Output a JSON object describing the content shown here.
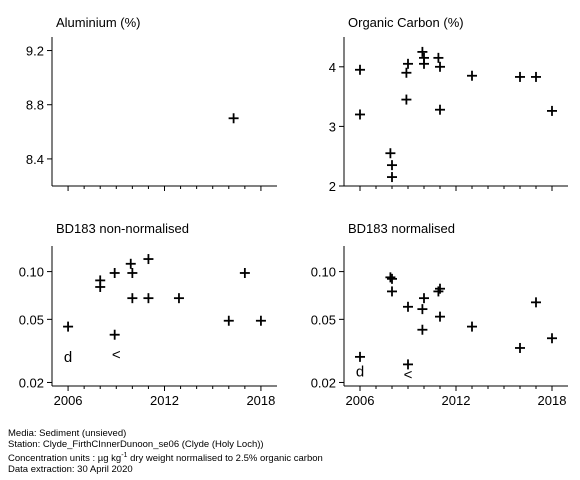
{
  "chart_data": [
    {
      "type": "scatter",
      "title": "Aluminium (%)",
      "xlim": [
        2005,
        2019
      ],
      "ylim": [
        8.2,
        9.3
      ],
      "yscale": "linear",
      "xticks": [
        2006,
        2012,
        2018
      ],
      "xtick_labels": [
        "",
        "",
        ""
      ],
      "yticks": [
        8.4,
        8.8,
        9.2
      ],
      "ytick_labels": [
        "8.4",
        "8.8",
        "9.2"
      ],
      "points": [
        {
          "x": 2016.3,
          "y": 8.7,
          "marker": "+"
        }
      ]
    },
    {
      "type": "scatter",
      "title": "Organic Carbon (%)",
      "xlim": [
        2005,
        2019
      ],
      "ylim": [
        2,
        4.5
      ],
      "yscale": "linear",
      "xticks": [
        2006,
        2012,
        2018
      ],
      "xtick_labels": [
        "",
        "",
        ""
      ],
      "yticks": [
        2,
        3,
        4
      ],
      "ytick_labels": [
        "2",
        "3",
        "4"
      ],
      "points": [
        {
          "x": 2006,
          "y": 3.95,
          "marker": "+"
        },
        {
          "x": 2006,
          "y": 3.2,
          "marker": "+"
        },
        {
          "x": 2007.9,
          "y": 2.55,
          "marker": "+"
        },
        {
          "x": 2008,
          "y": 2.35,
          "marker": "+"
        },
        {
          "x": 2008,
          "y": 2.15,
          "marker": "+"
        },
        {
          "x": 2008.9,
          "y": 3.9,
          "marker": "+"
        },
        {
          "x": 2009,
          "y": 4.05,
          "marker": "+"
        },
        {
          "x": 2008.9,
          "y": 3.45,
          "marker": "+"
        },
        {
          "x": 2009.9,
          "y": 4.25,
          "marker": "+"
        },
        {
          "x": 2010,
          "y": 4.15,
          "marker": "+"
        },
        {
          "x": 2010,
          "y": 4.05,
          "marker": "+"
        },
        {
          "x": 2010.9,
          "y": 4.15,
          "marker": "+"
        },
        {
          "x": 2011,
          "y": 4.0,
          "marker": "+"
        },
        {
          "x": 2011,
          "y": 3.28,
          "marker": "+"
        },
        {
          "x": 2013,
          "y": 3.85,
          "marker": "+"
        },
        {
          "x": 2016,
          "y": 3.83,
          "marker": "+"
        },
        {
          "x": 2017,
          "y": 3.83,
          "marker": "+"
        },
        {
          "x": 2018,
          "y": 3.26,
          "marker": "+"
        }
      ]
    },
    {
      "type": "scatter",
      "title": "BD183 non-normalised",
      "xlim": [
        2005,
        2019
      ],
      "ylim": [
        0.019,
        0.145
      ],
      "yscale": "log",
      "xticks": [
        2006,
        2012,
        2018
      ],
      "xtick_labels": [
        "2006",
        "2012",
        "2018"
      ],
      "yticks": [
        0.02,
        0.05,
        0.1
      ],
      "ytick_labels": [
        "0.02",
        "0.05",
        "0.10"
      ],
      "points": [
        {
          "x": 2006,
          "y": 0.045,
          "marker": "+"
        },
        {
          "x": 2006,
          "y": 0.029,
          "marker": "d"
        },
        {
          "x": 2008,
          "y": 0.088,
          "marker": "+"
        },
        {
          "x": 2008,
          "y": 0.08,
          "marker": "+"
        },
        {
          "x": 2008.9,
          "y": 0.098,
          "marker": "+"
        },
        {
          "x": 2008.9,
          "y": 0.04,
          "marker": "+"
        },
        {
          "x": 2009,
          "y": 0.03,
          "marker": "<"
        },
        {
          "x": 2009.9,
          "y": 0.112,
          "marker": "+"
        },
        {
          "x": 2010,
          "y": 0.098,
          "marker": "+"
        },
        {
          "x": 2010,
          "y": 0.068,
          "marker": "+"
        },
        {
          "x": 2011,
          "y": 0.12,
          "marker": "+"
        },
        {
          "x": 2011,
          "y": 0.068,
          "marker": "+"
        },
        {
          "x": 2012.9,
          "y": 0.068,
          "marker": "+"
        },
        {
          "x": 2016,
          "y": 0.049,
          "marker": "+"
        },
        {
          "x": 2017,
          "y": 0.098,
          "marker": "+"
        },
        {
          "x": 2018,
          "y": 0.049,
          "marker": "+"
        }
      ]
    },
    {
      "type": "scatter",
      "title": "BD183 normalised",
      "xlim": [
        2005,
        2019
      ],
      "ylim": [
        0.019,
        0.145
      ],
      "yscale": "log",
      "xticks": [
        2006,
        2012,
        2018
      ],
      "xtick_labels": [
        "2006",
        "2012",
        "2018"
      ],
      "yticks": [
        0.02,
        0.05,
        0.1
      ],
      "ytick_labels": [
        "0.02",
        "0.05",
        "0.10"
      ],
      "points": [
        {
          "x": 2006,
          "y": 0.029,
          "marker": "+"
        },
        {
          "x": 2006,
          "y": 0.0235,
          "marker": "d"
        },
        {
          "x": 2007.9,
          "y": 0.092,
          "marker": "+"
        },
        {
          "x": 2008,
          "y": 0.09,
          "marker": "+"
        },
        {
          "x": 2008,
          "y": 0.075,
          "marker": "+"
        },
        {
          "x": 2009,
          "y": 0.06,
          "marker": "+"
        },
        {
          "x": 2009,
          "y": 0.026,
          "marker": "+"
        },
        {
          "x": 2009,
          "y": 0.0225,
          "marker": "<"
        },
        {
          "x": 2009.9,
          "y": 0.058,
          "marker": "+"
        },
        {
          "x": 2010,
          "y": 0.068,
          "marker": "+"
        },
        {
          "x": 2009.9,
          "y": 0.043,
          "marker": "+"
        },
        {
          "x": 2010.9,
          "y": 0.075,
          "marker": "+"
        },
        {
          "x": 2011,
          "y": 0.078,
          "marker": "+"
        },
        {
          "x": 2011,
          "y": 0.052,
          "marker": "+"
        },
        {
          "x": 2013,
          "y": 0.045,
          "marker": "+"
        },
        {
          "x": 2016,
          "y": 0.033,
          "marker": "+"
        },
        {
          "x": 2017,
          "y": 0.064,
          "marker": "+"
        },
        {
          "x": 2018,
          "y": 0.038,
          "marker": "+"
        }
      ]
    }
  ],
  "footer": {
    "media": "Media: Sediment (unsieved)",
    "station": "Station: Clyde_FirthCInnerDunoon_se06 (Clyde (Holy Loch))",
    "units_prefix": "Concentration units : µg kg",
    "units_superscript": "-1",
    "units_suffix": " dry weight normalised to 2.5% organic carbon",
    "extraction": "Data extraction: 30 April 2020"
  }
}
